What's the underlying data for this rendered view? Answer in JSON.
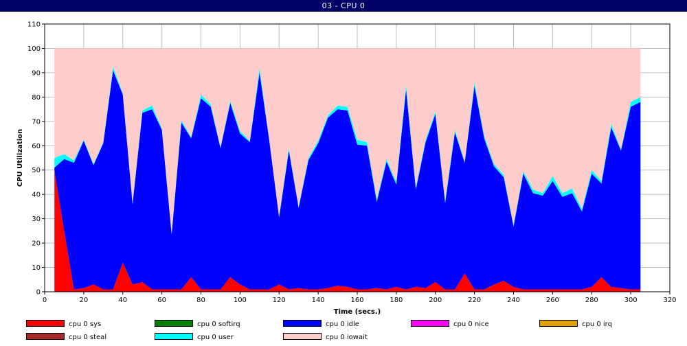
{
  "window": {
    "title": "03 - CPU 0"
  },
  "chart_data": {
    "type": "area",
    "stacked": true,
    "xlabel": "Time (secs.)",
    "ylabel": "CPU Utilization",
    "xlim": [
      0,
      320
    ],
    "ylim": [
      0,
      110
    ],
    "xticks": [
      0,
      20,
      40,
      60,
      80,
      100,
      120,
      140,
      160,
      180,
      200,
      220,
      240,
      260,
      280,
      300,
      320
    ],
    "yticks": [
      0,
      10,
      20,
      30,
      40,
      50,
      60,
      70,
      80,
      90,
      100,
      110
    ],
    "grid": true,
    "legend_position": "bottom",
    "x": [
      5,
      10,
      15,
      20,
      25,
      30,
      35,
      40,
      45,
      50,
      55,
      60,
      65,
      70,
      75,
      80,
      85,
      90,
      95,
      100,
      105,
      110,
      115,
      120,
      125,
      130,
      135,
      140,
      145,
      150,
      155,
      160,
      165,
      170,
      175,
      180,
      185,
      190,
      195,
      200,
      205,
      210,
      215,
      220,
      225,
      230,
      235,
      240,
      245,
      250,
      255,
      260,
      265,
      270,
      275,
      280,
      285,
      290,
      295,
      300,
      305
    ],
    "series": [
      {
        "name": "cpu 0 sys",
        "color": "#ff0000",
        "values": [
          50,
          25,
          1,
          1.5,
          3,
          1,
          1,
          12,
          3,
          4,
          1,
          1,
          1,
          1,
          6,
          1,
          1,
          1,
          6,
          3,
          1,
          1,
          1,
          3,
          1,
          1.5,
          1,
          1,
          1.5,
          2.5,
          2,
          1,
          1,
          1.5,
          1,
          2,
          1,
          2,
          1.5,
          4,
          1,
          1,
          7.5,
          1,
          1,
          3,
          4.5,
          2,
          1,
          1,
          1,
          1,
          1,
          1,
          1,
          2,
          6,
          2,
          1.5,
          1,
          1
        ]
      },
      {
        "name": "cpu 0 softirq",
        "color": "#008000",
        "values": [
          0,
          0,
          0,
          0,
          0,
          0,
          0,
          0,
          0,
          0,
          0,
          0,
          0,
          0,
          0,
          0,
          0,
          0,
          0,
          0,
          0,
          0,
          0,
          0,
          0,
          0,
          0,
          0,
          0,
          0,
          0,
          0,
          0,
          0,
          0,
          0,
          0,
          0,
          0,
          0,
          0,
          0,
          0,
          0,
          0,
          0,
          0,
          0,
          0,
          0,
          0,
          0,
          0,
          0,
          0,
          0,
          0,
          0,
          0,
          0,
          0
        ]
      },
      {
        "name": "cpu 0 idle",
        "color": "#0000ff",
        "values": [
          1,
          29.5,
          52,
          60.5,
          49,
          60,
          90,
          69,
          33,
          69.5,
          74,
          65.5,
          22.5,
          68.5,
          57,
          78.5,
          75,
          58,
          71.5,
          62,
          60.5,
          89,
          61,
          27.5,
          57,
          33,
          53,
          60,
          70,
          72.5,
          72.5,
          59.5,
          59,
          35.5,
          52.5,
          42,
          82,
          40,
          60,
          69,
          35.5,
          64.5,
          45.5,
          83.5,
          62,
          48.5,
          42.5,
          24.8,
          47.5,
          39.5,
          38.5,
          44.5,
          38,
          39.5,
          32,
          46.5,
          38.5,
          65.5,
          56.5,
          75,
          77
        ]
      },
      {
        "name": "cpu 0 nice",
        "color": "#ff00ff",
        "values": [
          0,
          0,
          0,
          0,
          0,
          0,
          0,
          0,
          0,
          0,
          0,
          0,
          0,
          0,
          0,
          0,
          0,
          0,
          0,
          0,
          0,
          0,
          0,
          0,
          0,
          0,
          0,
          0,
          0,
          0,
          0,
          0,
          0,
          0,
          0,
          0,
          0,
          0,
          0,
          0,
          0,
          0,
          0,
          0,
          0,
          0,
          0,
          0,
          0,
          0,
          0,
          0,
          0,
          0,
          0,
          0,
          0,
          0,
          0,
          0,
          0
        ]
      },
      {
        "name": "cpu 0 irq",
        "color": "#e0a000",
        "values": [
          0,
          0,
          0,
          0,
          0,
          0,
          0,
          0,
          0,
          0,
          0,
          0,
          0,
          0,
          0,
          0,
          0,
          0,
          0,
          0,
          0,
          0,
          0,
          0,
          0,
          0,
          0,
          0,
          0,
          0,
          0,
          0,
          0,
          0,
          0,
          0,
          0,
          0,
          0,
          0,
          0,
          0,
          0,
          0,
          0,
          0,
          0,
          0,
          0,
          0,
          0,
          0,
          0,
          0,
          0,
          0,
          0,
          0,
          0,
          0,
          0
        ]
      },
      {
        "name": "cpu 0 steal",
        "color": "#a52a2a",
        "values": [
          0,
          0,
          0,
          0,
          0,
          0,
          0,
          0,
          0,
          0,
          0,
          0,
          0,
          0,
          0,
          0,
          0,
          0,
          0,
          0,
          0,
          0,
          0,
          0,
          0,
          0,
          0,
          0,
          0,
          0,
          0,
          0,
          0,
          0,
          0,
          0,
          0,
          0,
          0,
          0,
          0,
          0,
          0,
          0,
          0,
          0,
          0,
          0,
          0,
          0,
          0,
          0,
          0,
          0,
          0,
          0,
          0,
          0,
          0,
          0,
          0
        ]
      },
      {
        "name": "cpu 0 user",
        "color": "#00ffff",
        "values": [
          4,
          2,
          1,
          0.5,
          0.5,
          0.5,
          1.5,
          0.5,
          0.5,
          1,
          1.5,
          0.5,
          0.5,
          1,
          0.5,
          1.5,
          1,
          0.5,
          1,
          1,
          0.5,
          2,
          0.5,
          0.5,
          1,
          0.5,
          1,
          1,
          1,
          1.5,
          1.5,
          2,
          1.5,
          1,
          1,
          1,
          2,
          1,
          1,
          1,
          1,
          1,
          0.5,
          1.5,
          1,
          1,
          1,
          0.7,
          1,
          1.5,
          1,
          2,
          1.5,
          2,
          1,
          1.5,
          1,
          1.5,
          0.5,
          2,
          2
        ]
      },
      {
        "name": "cpu 0 iowait",
        "color": "#ffcccc",
        "values": [
          45,
          43.5,
          46,
          37.5,
          47.5,
          38.5,
          7.5,
          18.5,
          63.5,
          25.5,
          23.5,
          33,
          76,
          29.5,
          36.5,
          19,
          23,
          40.5,
          21.5,
          34,
          38,
          8,
          37.5,
          69,
          41,
          65,
          45,
          38,
          27.5,
          23.5,
          24,
          37.5,
          38.5,
          62,
          45.5,
          55,
          15,
          57,
          37.5,
          26,
          62.5,
          33.5,
          46.5,
          14,
          36,
          47.5,
          52,
          72.5,
          50.5,
          58,
          59.5,
          52.5,
          59.5,
          57.5,
          66,
          50,
          54.5,
          31,
          41.5,
          22,
          20
        ]
      }
    ],
    "legend_rows": [
      [
        "cpu 0 sys",
        "cpu 0 softirq",
        "cpu 0 idle",
        "cpu 0 nice",
        "cpu 0 irq"
      ],
      [
        "cpu 0 steal",
        "cpu 0 user",
        "cpu 0 iowait"
      ]
    ]
  }
}
